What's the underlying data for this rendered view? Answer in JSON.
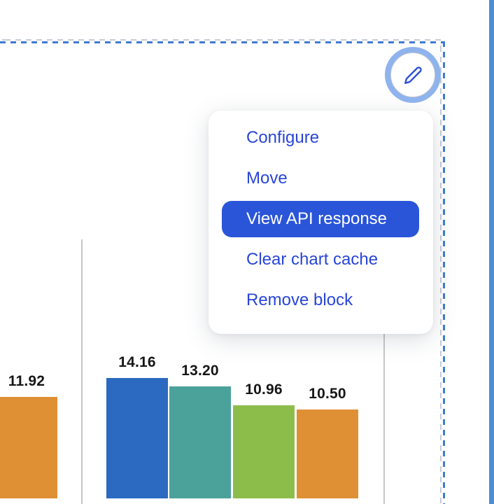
{
  "block_menu": {
    "edit_button": {
      "icon": "pencil-icon"
    },
    "items": [
      {
        "label": "Configure",
        "highlighted": false
      },
      {
        "label": "Move",
        "highlighted": false
      },
      {
        "label": "View API response",
        "highlighted": true
      },
      {
        "label": "Clear chart cache",
        "highlighted": false
      },
      {
        "label": "Remove block",
        "highlighted": false
      }
    ]
  },
  "chart_data": {
    "type": "bar",
    "orientation": "vertical",
    "data_labels_shown": true,
    "gridlines": "vertical category separators",
    "axes_visible": false,
    "visible_value_range": [
      10.5,
      14.16
    ],
    "bars": [
      {
        "group": 1,
        "value": 11.92,
        "label": "11.92",
        "color": "#e09034"
      },
      {
        "group": 2,
        "value": 14.16,
        "label": "14.16",
        "color": "#2c69c1"
      },
      {
        "group": 2,
        "value": 13.2,
        "label": "13.20",
        "color": "#4ba29b"
      },
      {
        "group": 2,
        "value": 10.96,
        "label": "10.96",
        "color": "#8cbd4b"
      },
      {
        "group": 2,
        "value": 10.5,
        "label": "10.50",
        "color": "#e09034"
      }
    ]
  },
  "colors": {
    "menu_text": "#2945d8",
    "menu_highlight_bg": "#2a55d9",
    "menu_highlight_text": "#ffffff",
    "selection_dash_blue": "#3f7bd0",
    "selection_dash_gray": "#c7ccd4",
    "edit_button_ring": "#8fb3ed",
    "pencil_icon": "#2a4fd3",
    "page_edge_strip": "#4b8ed3",
    "gridline": "#c6c6c6",
    "value_label": "#161616"
  }
}
